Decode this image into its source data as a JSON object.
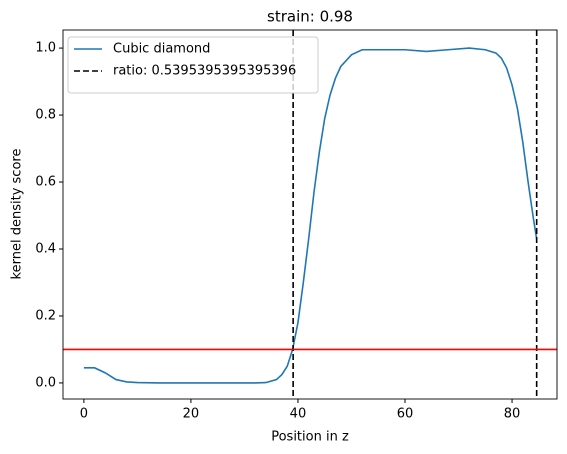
{
  "chart_data": {
    "type": "line",
    "title": "strain: 0.98",
    "x_label": "Position in z",
    "y_label": "kernel density score",
    "x": [
      0,
      2,
      4,
      6,
      8,
      10,
      14,
      20,
      26,
      32,
      34,
      36,
      37,
      38,
      39,
      40,
      41,
      42,
      43,
      44,
      45,
      46,
      47,
      48,
      50,
      52,
      56,
      60,
      64,
      68,
      72,
      75,
      77,
      78,
      79,
      80,
      81,
      82,
      83,
      84,
      84.6
    ],
    "series": [
      {
        "name": "Cubic diamond",
        "color": "#1f77b4",
        "values": [
          0.045,
          0.045,
          0.03,
          0.01,
          0.003,
          0.001,
          0,
          0,
          0,
          0,
          0.001,
          0.01,
          0.025,
          0.05,
          0.1,
          0.18,
          0.3,
          0.43,
          0.57,
          0.69,
          0.79,
          0.86,
          0.91,
          0.945,
          0.98,
          0.995,
          0.995,
          0.995,
          0.99,
          0.995,
          1.0,
          0.995,
          0.985,
          0.97,
          0.94,
          0.89,
          0.82,
          0.72,
          0.6,
          0.49,
          0.43
        ]
      }
    ],
    "reference_lines": [
      {
        "name": "ratio: 0.5395395395395396",
        "color": "#000000",
        "style": "dashed",
        "x": [
          39.1,
          84.6
        ]
      }
    ],
    "hline": {
      "value": 0.1,
      "color": "#ff0000"
    },
    "xlim": [
      -3.9,
      88.4
    ],
    "ylim": [
      -0.048,
      1.054
    ],
    "xticks": [
      0,
      20,
      40,
      60,
      80
    ],
    "yticks": [
      {
        "value": 0,
        "label": "0.0"
      },
      {
        "value": 0.2,
        "label": "0.2"
      },
      {
        "value": 0.4,
        "label": "0.4"
      },
      {
        "value": 0.6,
        "label": "0.6"
      },
      {
        "value": 0.8,
        "label": "0.8"
      },
      {
        "value": 1,
        "label": "1.0"
      }
    ],
    "legend": "upper left"
  }
}
